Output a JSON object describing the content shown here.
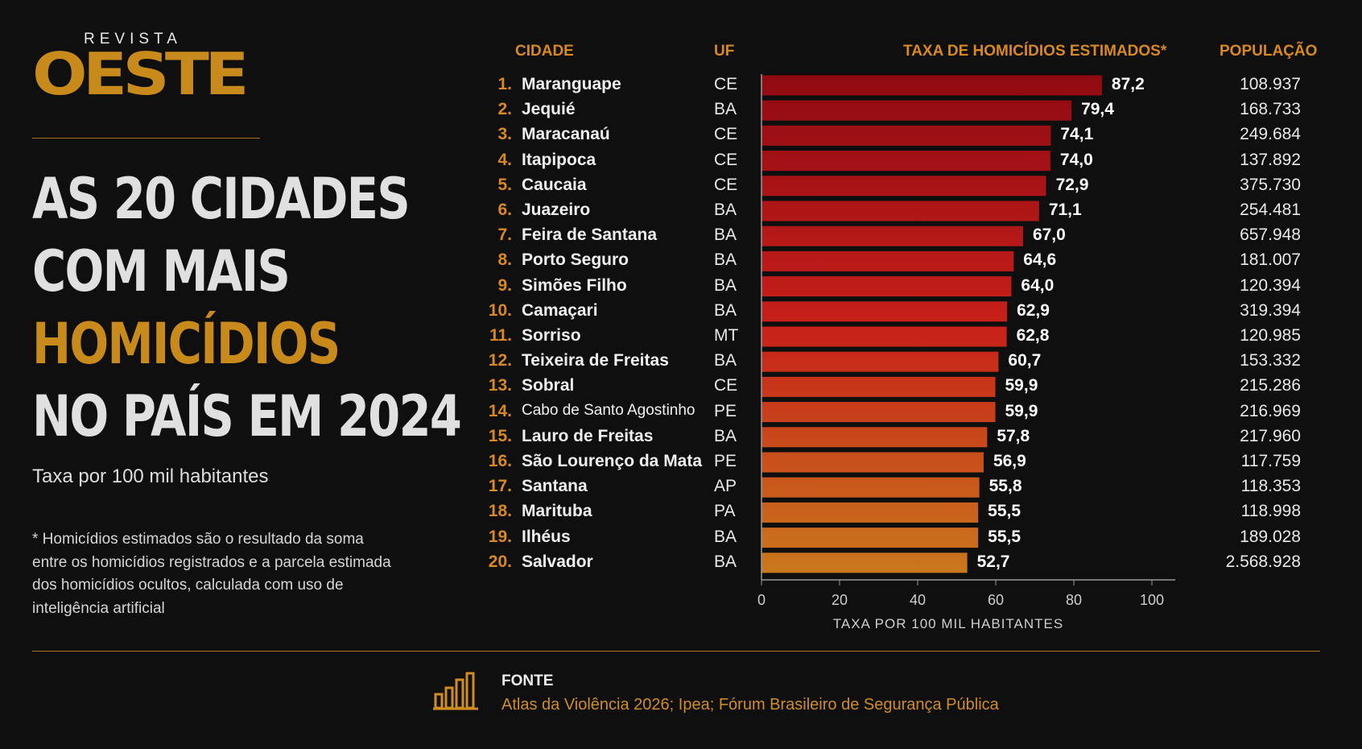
{
  "brand": {
    "top": "REVISTA",
    "main": "OESTE"
  },
  "headline": {
    "line1": "AS 20 CIDADES",
    "line2": "COM MAIS",
    "line3": "HOMICÍDIOS",
    "line4": "NO PAÍS EM 2024"
  },
  "subtitle": "Taxa por 100 mil habitantes",
  "note": "* Homicídios estimados são o resultado da soma entre os homicídios registrados e a parcela estimada dos homicídios ocultos, calculada com uso de inteligência artificial",
  "columns": {
    "city": "CIDADE",
    "uf": "UF",
    "rate": "TAXA DE HOMICÍDIOS ESTIMADOS*",
    "population": "POPULAÇÃO"
  },
  "source": {
    "label": "FONTE",
    "text": "Atlas da Violência 2026; Ipea;  Fórum Brasileiro de Segurança Pública",
    "icon": "bar-chart-icon"
  },
  "colors": {
    "accent": "#d8891f",
    "bar_top": "#8f0a12",
    "bar_bottom": "#c97a1c",
    "background": "#0f0f0f"
  },
  "chart_data": {
    "type": "bar",
    "orientation": "horizontal",
    "xlabel": "TAXA POR 100 MIL HABITANTES",
    "xlim": [
      0,
      100
    ],
    "xticks": [
      0,
      20,
      40,
      60,
      80,
      100
    ],
    "grid": false,
    "rows": [
      {
        "rank": "1.",
        "city": "Maranguape",
        "uf": "CE",
        "value": 87.2,
        "label": "87,2",
        "population": "108.937"
      },
      {
        "rank": "2.",
        "city": "Jequié",
        "uf": "BA",
        "value": 79.4,
        "label": "79,4",
        "population": "168.733"
      },
      {
        "rank": "3.",
        "city": "Maracanaú",
        "uf": "CE",
        "value": 74.1,
        "label": "74,1",
        "population": "249.684"
      },
      {
        "rank": "4.",
        "city": "Itapipoca",
        "uf": "CE",
        "value": 74.0,
        "label": "74,0",
        "population": "137.892"
      },
      {
        "rank": "5.",
        "city": "Caucaia",
        "uf": "CE",
        "value": 72.9,
        "label": "72,9",
        "population": "375.730"
      },
      {
        "rank": "6.",
        "city": "Juazeiro",
        "uf": "BA",
        "value": 71.1,
        "label": "71,1",
        "population": "254.481"
      },
      {
        "rank": "7.",
        "city": "Feira de Santana",
        "uf": "BA",
        "value": 67.0,
        "label": "67,0",
        "population": "657.948"
      },
      {
        "rank": "8.",
        "city": "Porto Seguro",
        "uf": "BA",
        "value": 64.6,
        "label": "64,6",
        "population": "181.007"
      },
      {
        "rank": "9.",
        "city": "Simões Filho",
        "uf": "BA",
        "value": 64.0,
        "label": "64,0",
        "population": "120.394"
      },
      {
        "rank": "10.",
        "city": "Camaçari",
        "uf": "BA",
        "value": 62.9,
        "label": "62,9",
        "population": "319.394"
      },
      {
        "rank": "11.",
        "city": "Sorriso",
        "uf": "MT",
        "value": 62.8,
        "label": "62,8",
        "population": "120.985"
      },
      {
        "rank": "12.",
        "city": "Teixeira de Freitas",
        "uf": "BA",
        "value": 60.7,
        "label": "60,7",
        "population": "153.332"
      },
      {
        "rank": "13.",
        "city": "Sobral",
        "uf": "CE",
        "value": 59.9,
        "label": "59,9",
        "population": "215.286"
      },
      {
        "rank": "14.",
        "city": "Cabo de Santo Agostinho",
        "uf": "PE",
        "value": 59.9,
        "label": "59,9",
        "population": "216.969"
      },
      {
        "rank": "15.",
        "city": "Lauro de Freitas",
        "uf": "BA",
        "value": 57.8,
        "label": "57,8",
        "population": "217.960"
      },
      {
        "rank": "16.",
        "city": "São Lourenço da Mata",
        "uf": "PE",
        "value": 56.9,
        "label": "56,9",
        "population": "117.759"
      },
      {
        "rank": "17.",
        "city": "Santana",
        "uf": "AP",
        "value": 55.8,
        "label": "55,8",
        "population": "118.353"
      },
      {
        "rank": "18.",
        "city": "Marituba",
        "uf": "PA",
        "value": 55.5,
        "label": "55,5",
        "population": "118.998"
      },
      {
        "rank": "19.",
        "city": "Ilhéus",
        "uf": "BA",
        "value": 55.5,
        "label": "55,5",
        "population": "189.028"
      },
      {
        "rank": "20.",
        "city": "Salvador",
        "uf": "BA",
        "value": 52.7,
        "label": "52,7",
        "population": "2.568.928"
      }
    ]
  }
}
